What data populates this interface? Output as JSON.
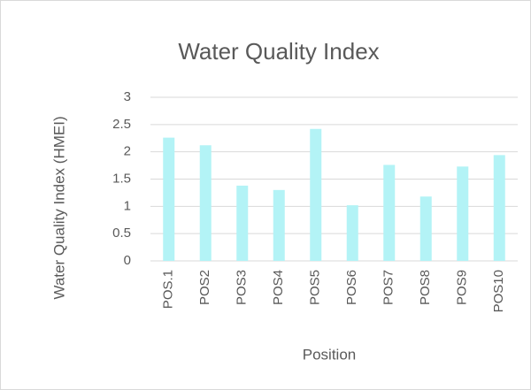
{
  "chart_data": {
    "type": "bar",
    "title": "Water Quality Index",
    "x_label": "Position",
    "y_label": "Water Quality Index (HMEI)",
    "categories": [
      "POS.1",
      "POS2",
      "POS3",
      "POS4",
      "POS5",
      "POS6",
      "POS7",
      "POS8",
      "POS9",
      "POS10"
    ],
    "values": [
      2.26,
      2.12,
      1.38,
      1.3,
      2.42,
      1.02,
      1.76,
      1.18,
      1.73,
      1.94
    ],
    "color": "#b3f3f6",
    "ylim": [
      0,
      3
    ],
    "yticks": [
      0,
      0.5,
      1,
      1.5,
      2,
      2.5,
      3
    ],
    "grid": true
  }
}
